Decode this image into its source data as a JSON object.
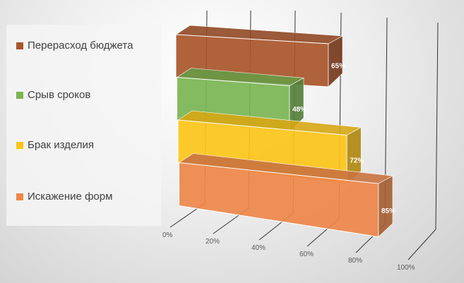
{
  "chart_data": {
    "type": "bar",
    "orientation": "horizontal-3d",
    "categories": [
      "Перерасход бюджета",
      "Срыв сроков",
      "Брак изделия",
      "Искажение форм"
    ],
    "values": [
      65,
      48,
      72,
      85
    ],
    "data_labels": [
      "65%",
      "48%",
      "72%",
      "85%"
    ],
    "colors": [
      "#a9552a",
      "#7ab552",
      "#fcc419",
      "#ed874a"
    ],
    "xlim": [
      0,
      100
    ],
    "x_ticks": [
      "0%",
      "20%",
      "40%",
      "60%",
      "80%",
      "100%"
    ],
    "legend_position": "left",
    "grid": true,
    "title": ""
  }
}
